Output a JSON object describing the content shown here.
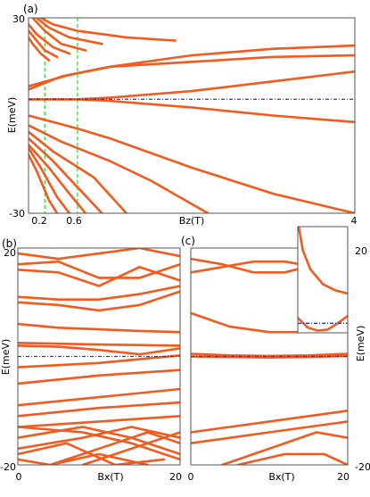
{
  "colors": {
    "band": "#f25a1e",
    "fermi": "#1f35d6",
    "marker": "#3ee24a",
    "frame": "#555555"
  },
  "chart_data": [
    {
      "panel": "(a)",
      "type": "line",
      "xlabel": "Bz(T)",
      "ylabel": "E(meV)",
      "xlim": [
        0,
        4
      ],
      "ylim": [
        -30,
        30
      ],
      "x_ticks": [
        "0.2",
        "0.6",
        "4"
      ],
      "y_ticks": [
        "30",
        "-30"
      ],
      "fermi_level": 5,
      "marker_lines_x": [
        0.2,
        0.6
      ],
      "series": [
        {
          "x": [
            0,
            0.5,
            1,
            2,
            3,
            4
          ],
          "values": [
            9,
            12.5,
            15,
            18.5,
            20.5,
            21.5
          ]
        },
        {
          "x": [
            0,
            0.4,
            1,
            2,
            3,
            4
          ],
          "values": [
            8,
            12,
            15,
            16.5,
            18,
            18.5
          ]
        },
        {
          "x": [
            0,
            0.3,
            0.6,
            1,
            2,
            3,
            4
          ],
          "values": [
            5,
            5,
            5,
            5.5,
            7.5,
            10.5,
            13.5
          ]
        },
        {
          "x": [
            0,
            0.3,
            0.6,
            1,
            2,
            3,
            4
          ],
          "values": [
            5,
            5,
            5,
            4.5,
            2.5,
            0,
            -2
          ]
        },
        {
          "x": [
            0,
            0.3,
            0.6,
            1,
            2,
            3,
            4
          ],
          "values": [
            0,
            -2,
            -4,
            -7,
            -16,
            -24,
            -30
          ]
        },
        {
          "x": [
            0,
            0.4,
            1,
            1.5,
            2.2
          ],
          "values": [
            -3,
            -8,
            -14,
            -20,
            -30
          ]
        },
        {
          "x": [
            0,
            0.3,
            0.8,
            1.2
          ],
          "values": [
            -5,
            -11,
            -19,
            -30
          ]
        },
        {
          "x": [
            0,
            0.3,
            0.6,
            0.9
          ],
          "values": [
            -7,
            -14,
            -22,
            -30
          ]
        },
        {
          "x": [
            0,
            0.25,
            0.5,
            0.7
          ],
          "values": [
            -9,
            -16,
            -24,
            -30
          ]
        },
        {
          "x": [
            0,
            0.15,
            0.35,
            0.5
          ],
          "values": [
            -10,
            -16,
            -25,
            -30
          ]
        },
        {
          "x": [
            0,
            0.1,
            0.25,
            0.35
          ],
          "values": [
            -12,
            -17,
            -26,
            -30
          ]
        },
        {
          "x": [
            0.15,
            0.3,
            0.6,
            1.2,
            1.8
          ],
          "values": [
            30,
            28,
            26,
            24,
            23
          ]
        },
        {
          "x": [
            0.1,
            0.25,
            0.5,
            0.9
          ],
          "values": [
            30,
            27,
            24,
            22
          ]
        },
        {
          "x": [
            0.05,
            0.2,
            0.4,
            0.7
          ],
          "values": [
            30,
            26,
            22,
            20
          ]
        },
        {
          "x": [
            0,
            0.1,
            0.3,
            0.5
          ],
          "values": [
            28,
            25,
            21,
            19
          ]
        },
        {
          "x": [
            0,
            0.1,
            0.2,
            0.35
          ],
          "values": [
            26,
            23,
            20,
            18
          ]
        },
        {
          "x": [
            0,
            0.05,
            0.15,
            0.25
          ],
          "values": [
            24,
            22,
            19,
            17
          ]
        }
      ]
    },
    {
      "panel": "(b)",
      "type": "line",
      "xlabel": "Bx(T)",
      "ylabel": "E(meV)",
      "xlim": [
        0,
        20
      ],
      "ylim": [
        -20,
        20
      ],
      "x_ticks": [
        "0",
        "20"
      ],
      "y_ticks": [
        "20",
        "-20"
      ],
      "fermi_level": 0,
      "series": [
        {
          "x": [
            0,
            5,
            10,
            15,
            20
          ],
          "values": [
            2,
            1.8,
            1.2,
            0.4,
            1.5
          ]
        },
        {
          "x": [
            0,
            10,
            20
          ],
          "values": [
            2.5,
            2.2,
            2.0
          ]
        },
        {
          "x": [
            0,
            5,
            10,
            15,
            20
          ],
          "values": [
            6,
            5.3,
            5.0,
            4.7,
            4.5
          ]
        },
        {
          "x": [
            0,
            5,
            10,
            15,
            20
          ],
          "values": [
            10,
            9.5,
            8.5,
            9.5,
            12
          ]
        },
        {
          "x": [
            0,
            5,
            10,
            15,
            20
          ],
          "values": [
            11,
            10.5,
            10.5,
            11.5,
            13
          ]
        },
        {
          "x": [
            0,
            5,
            10,
            15,
            20
          ],
          "values": [
            16,
            15.5,
            13,
            16.5,
            14
          ]
        },
        {
          "x": [
            0,
            5,
            10,
            15,
            20
          ],
          "values": [
            17,
            17.5,
            14.5,
            14.5,
            17
          ]
        },
        {
          "x": [
            0,
            5,
            10,
            15,
            20
          ],
          "values": [
            19,
            18,
            19,
            20,
            18.5
          ]
        },
        {
          "x": [
            0,
            10,
            20
          ],
          "values": [
            -2,
            -1.2,
            0.2
          ]
        },
        {
          "x": [
            0,
            10,
            20
          ],
          "values": [
            -5,
            -3.5,
            -2.5
          ]
        },
        {
          "x": [
            0,
            10,
            20
          ],
          "values": [
            -9,
            -7.5,
            -6
          ]
        },
        {
          "x": [
            0,
            10,
            20
          ],
          "values": [
            -11,
            -9.5,
            -8.5
          ]
        },
        {
          "x": [
            0,
            10,
            20
          ],
          "values": [
            -13,
            -12,
            -11
          ]
        },
        {
          "x": [
            0,
            8,
            14,
            20
          ],
          "values": [
            -13,
            -14,
            -16,
            -19
          ]
        },
        {
          "x": [
            0,
            8,
            14,
            20
          ],
          "values": [
            -15,
            -13,
            -15,
            -18
          ]
        },
        {
          "x": [
            0,
            8,
            14,
            20
          ],
          "values": [
            -17,
            -15,
            -13,
            -15
          ]
        },
        {
          "x": [
            0,
            6,
            12,
            18
          ],
          "values": [
            -18,
            -16,
            -20,
            -19
          ]
        },
        {
          "x": [
            4,
            10,
            16,
            20
          ],
          "values": [
            -20,
            -17,
            -14,
            -16
          ]
        },
        {
          "x": [
            8,
            14,
            20
          ],
          "values": [
            -20,
            -17,
            -14
          ]
        },
        {
          "x": [
            0,
            4,
            10,
            16
          ],
          "values": [
            -19,
            -20,
            -18,
            -20
          ]
        }
      ]
    },
    {
      "panel": "(c)",
      "type": "line",
      "xlabel": "Bx(T)",
      "ylabel": "E(meV)",
      "xlim": [
        0,
        20
      ],
      "ylim": [
        -20,
        20
      ],
      "x_ticks": [
        "0",
        "20"
      ],
      "y_ticks": [
        "20",
        "-20"
      ],
      "fermi_level": 0,
      "series": [
        {
          "x": [
            0,
            4,
            8,
            12,
            16,
            20
          ],
          "values": [
            18,
            17,
            15.5,
            15.5,
            17,
            18
          ]
        },
        {
          "x": [
            0,
            4,
            8,
            12,
            16,
            20
          ],
          "values": [
            15.5,
            16.5,
            17.5,
            17.5,
            16.5,
            15
          ]
        },
        {
          "x": [
            0,
            5,
            10,
            15,
            20
          ],
          "values": [
            8,
            5.5,
            4.5,
            4.5,
            4.5
          ]
        },
        {
          "x": [
            0,
            5,
            10,
            15,
            20
          ],
          "values": [
            0.5,
            0.2,
            0.1,
            0.2,
            0.5
          ]
        },
        {
          "x": [
            0,
            5,
            10,
            15,
            20
          ],
          "values": [
            0,
            -0.1,
            -0.2,
            -0.1,
            0.1
          ]
        },
        {
          "x": [
            0,
            10,
            20
          ],
          "values": [
            -14,
            -12,
            -10
          ]
        },
        {
          "x": [
            0,
            10,
            20
          ],
          "values": [
            -16,
            -14,
            -12
          ]
        },
        {
          "x": [
            4,
            10,
            16,
            20
          ],
          "values": [
            -20,
            -17,
            -14,
            -15
          ]
        },
        {
          "x": [
            6,
            12,
            17,
            20
          ],
          "values": [
            -20,
            -18,
            -18,
            -20
          ]
        }
      ]
    }
  ],
  "inset": {
    "series": [
      {
        "x": [
          0.02,
          0.1,
          0.25,
          0.5,
          0.75,
          1
        ],
        "values": [
          1,
          0.78,
          0.6,
          0.46,
          0.4,
          0.37
        ]
      },
      {
        "x": [
          0,
          0.2,
          0.4,
          0.6,
          0.8,
          1
        ],
        "values": [
          0.14,
          0.05,
          0.02,
          0.03,
          0.09,
          0.16
        ]
      }
    ],
    "fermi_level": 0.09
  },
  "labels": {
    "a_title": "(a)",
    "a_xlabel": "Bz(T)",
    "a_ylabel": "E(meV)",
    "a_ytop": "30",
    "a_ybot": "-30",
    "a_x02": "0.2",
    "a_x06": "0.6",
    "a_x4": "4",
    "b_title": "(b)",
    "b_xlabel": "Bx(T)",
    "b_ylabel": "E(meV)",
    "b_ytop": "20",
    "b_ybot": "-20",
    "b_x0": "0",
    "b_x20": "20",
    "c_title": "(c)",
    "c_xlabel": "Bx(T)",
    "c_ylabel": "E(meV)",
    "c_ytop": "20",
    "c_ybot": "-20",
    "c_x0": "0",
    "c_x20": "20"
  }
}
